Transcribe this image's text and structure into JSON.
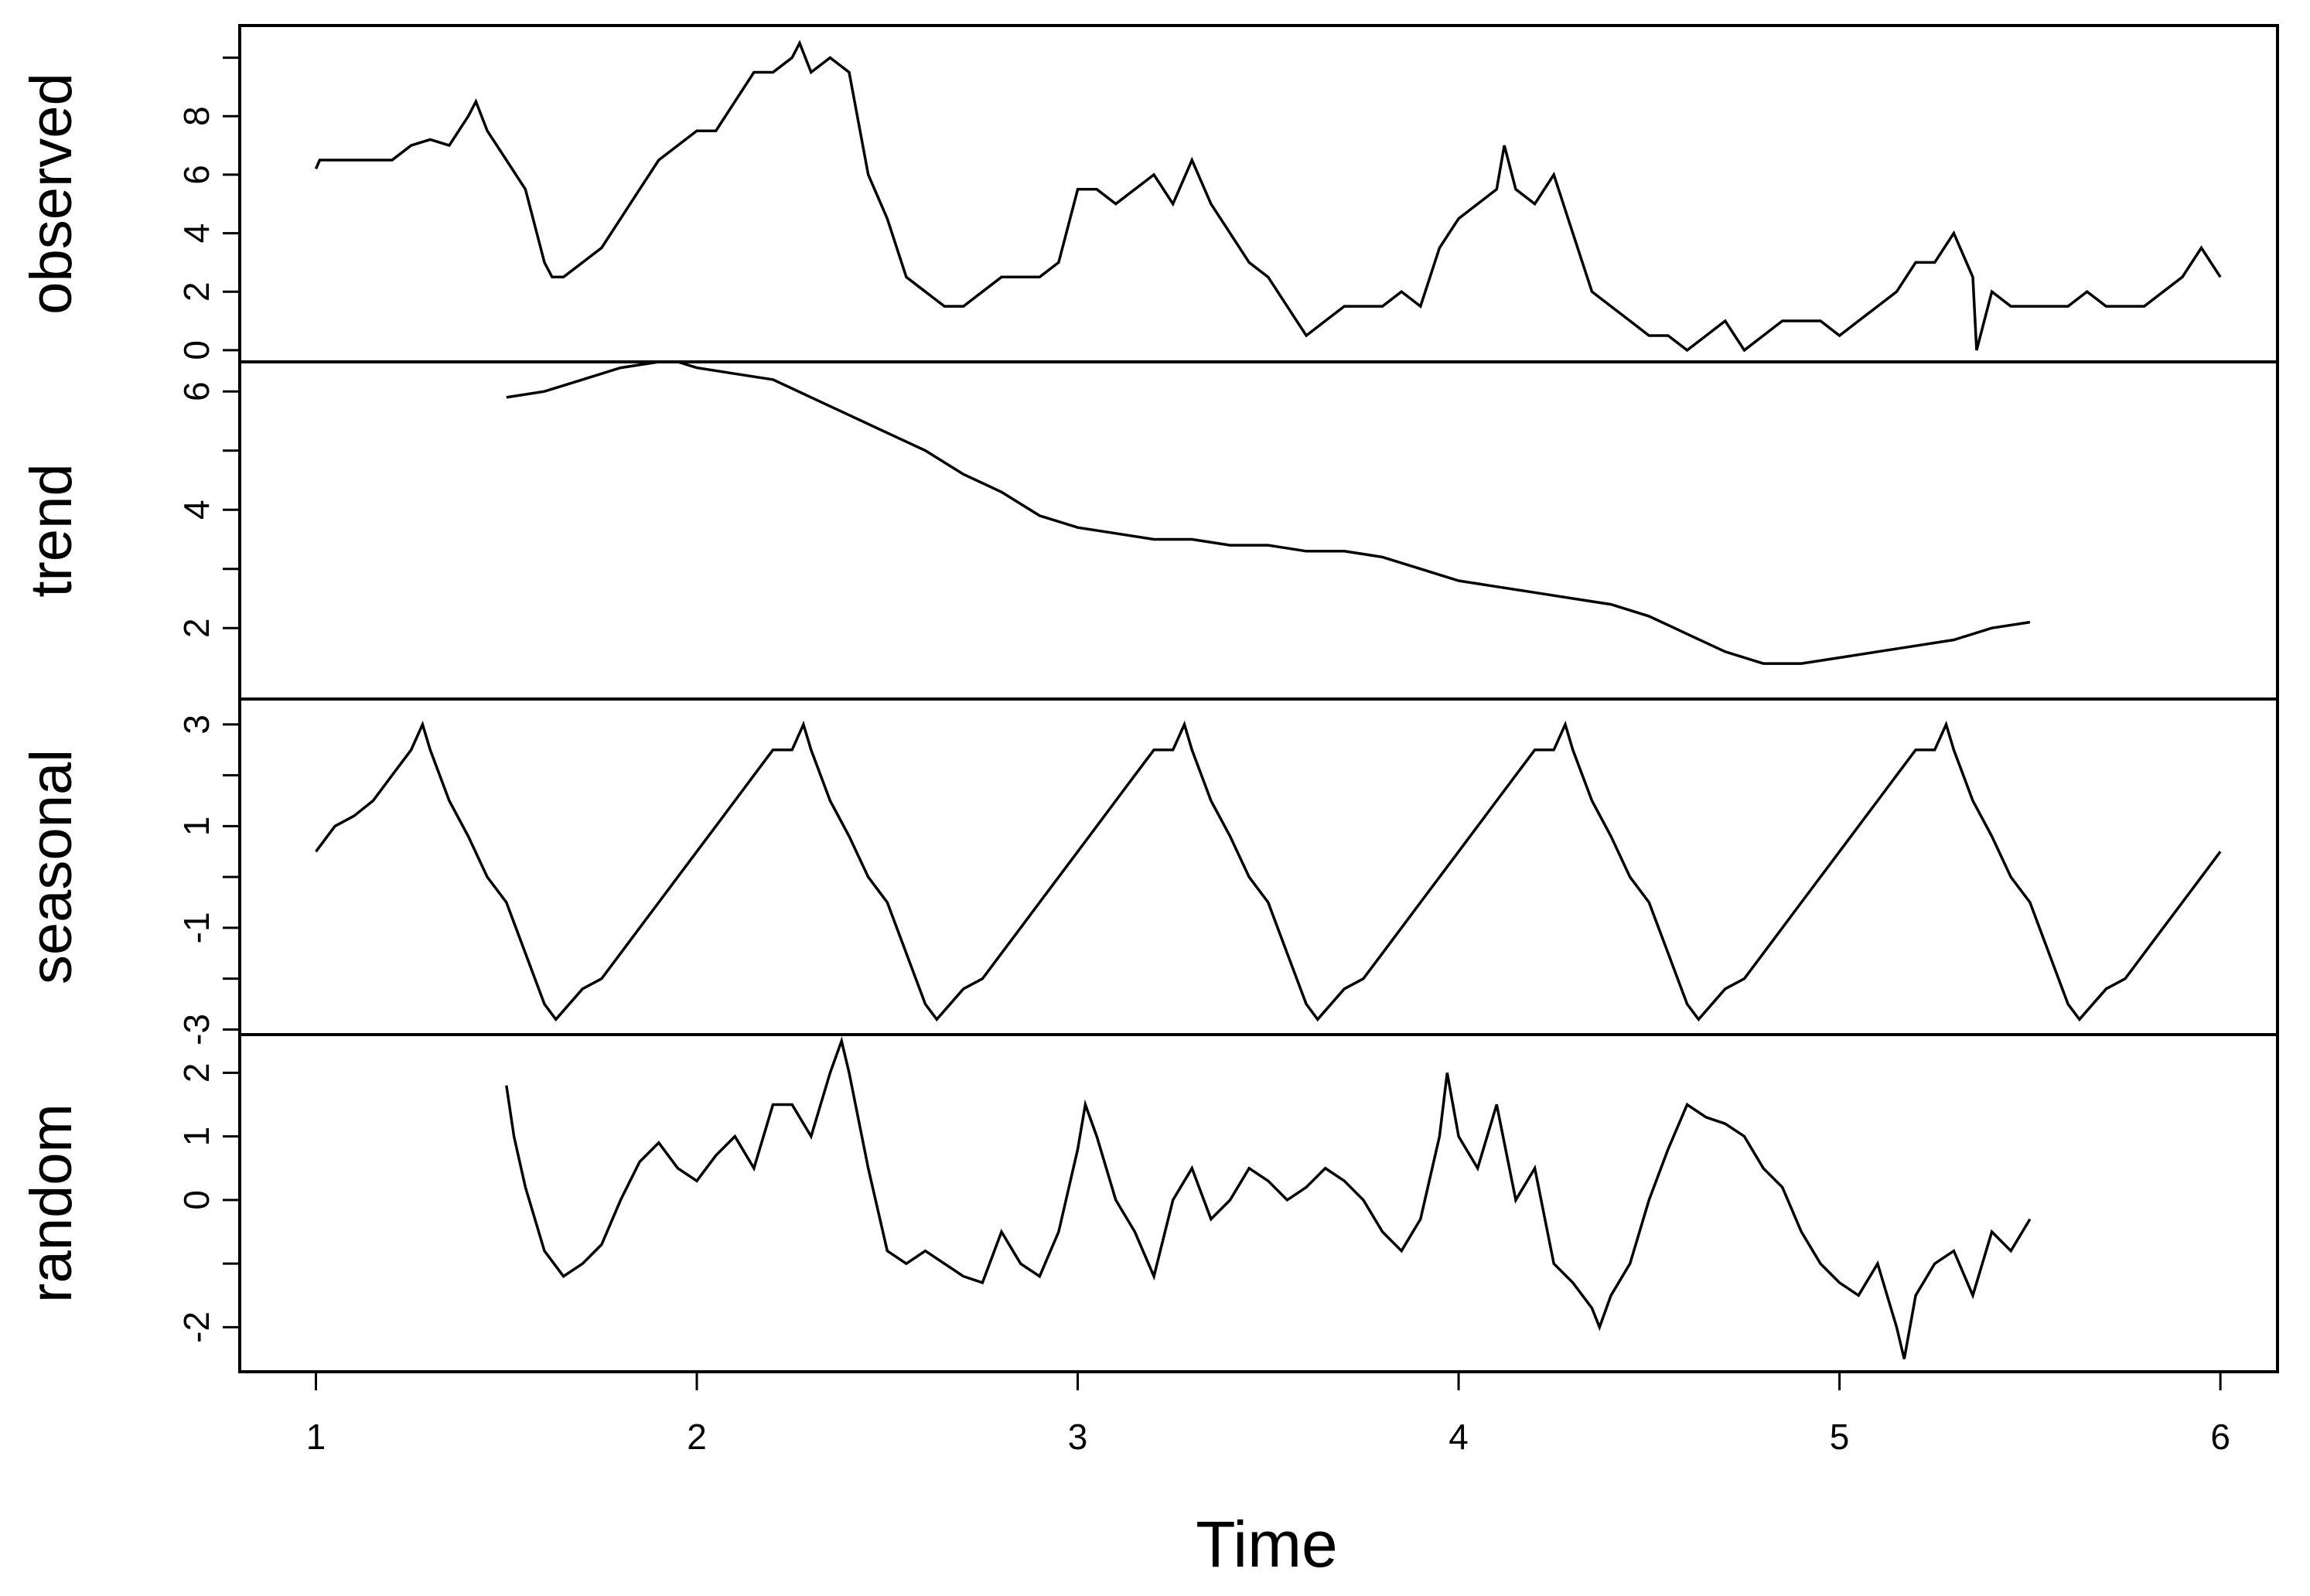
{
  "chart_data": {
    "type": "line",
    "title": "",
    "xlabel": "Time",
    "xlim": [
      0.8,
      6.15
    ],
    "x_ticks": [
      1,
      2,
      3,
      4,
      5,
      6
    ],
    "x_tick_labels": [
      "1",
      "2",
      "3",
      "4",
      "5",
      "6"
    ],
    "panels": [
      {
        "name": "observed",
        "ylabel": "observed",
        "ylim": [
          -0.4,
          11.1
        ],
        "y_ticks": [
          0,
          2,
          4,
          6,
          8,
          10
        ],
        "y_tick_labels": [
          "0",
          "2",
          "4",
          "6",
          "8",
          ""
        ],
        "x": [
          1.0,
          1.01,
          1.2,
          1.25,
          1.3,
          1.35,
          1.4,
          1.42,
          1.45,
          1.5,
          1.55,
          1.6,
          1.62,
          1.65,
          1.7,
          1.75,
          1.8,
          1.85,
          1.9,
          1.95,
          2.0,
          2.05,
          2.1,
          2.15,
          2.2,
          2.25,
          2.27,
          2.3,
          2.35,
          2.4,
          2.45,
          2.5,
          2.55,
          2.6,
          2.65,
          2.7,
          2.75,
          2.8,
          2.85,
          2.9,
          2.95,
          3.0,
          3.05,
          3.1,
          3.15,
          3.2,
          3.25,
          3.3,
          3.35,
          3.4,
          3.45,
          3.5,
          3.55,
          3.6,
          3.65,
          3.7,
          3.75,
          3.8,
          3.85,
          3.9,
          3.95,
          4.0,
          4.05,
          4.1,
          4.12,
          4.15,
          4.2,
          4.25,
          4.3,
          4.35,
          4.4,
          4.45,
          4.5,
          4.55,
          4.6,
          4.65,
          4.7,
          4.75,
          4.8,
          4.85,
          4.9,
          4.95,
          5.0,
          5.05,
          5.1,
          5.15,
          5.2,
          5.25,
          5.3,
          5.35,
          5.36,
          5.4,
          5.45,
          5.5,
          5.55,
          5.6,
          5.65,
          5.7,
          5.75,
          5.8,
          5.85,
          5.9,
          5.95,
          6.0
        ],
        "values": [
          6.2,
          6.5,
          6.5,
          7.0,
          7.2,
          7.0,
          8.0,
          8.5,
          7.5,
          6.5,
          5.5,
          3.0,
          2.5,
          2.5,
          3.0,
          3.5,
          4.5,
          5.5,
          6.5,
          7.0,
          7.5,
          7.5,
          8.5,
          9.5,
          9.5,
          10.0,
          10.5,
          9.5,
          10.0,
          9.5,
          6.0,
          4.5,
          2.5,
          2.0,
          1.5,
          1.5,
          2.0,
          2.5,
          2.5,
          2.5,
          3.0,
          5.5,
          5.5,
          5.0,
          5.5,
          6.0,
          5.0,
          6.5,
          5.0,
          4.0,
          3.0,
          2.5,
          1.5,
          0.5,
          1.0,
          1.5,
          1.5,
          1.5,
          2.0,
          1.5,
          3.5,
          4.5,
          5.0,
          5.5,
          7.0,
          5.5,
          5.0,
          6.0,
          4.0,
          2.0,
          1.5,
          1.0,
          0.5,
          0.5,
          0.0,
          0.5,
          1.0,
          0.0,
          0.5,
          1.0,
          1.0,
          1.0,
          0.5,
          1.0,
          1.5,
          2.0,
          3.0,
          3.0,
          4.0,
          2.5,
          0.0,
          2.0,
          1.5,
          1.5,
          1.5,
          1.5,
          2.0,
          1.5,
          1.5,
          1.5,
          2.0,
          2.5,
          3.5,
          2.5
        ]
      },
      {
        "name": "trend",
        "ylabel": "trend",
        "ylim": [
          0.8,
          6.5
        ],
        "y_ticks": [
          2,
          3,
          4,
          5,
          6
        ],
        "y_tick_labels": [
          "2",
          "",
          "4",
          "",
          "6"
        ],
        "x": [
          1.5,
          1.6,
          1.7,
          1.8,
          1.9,
          1.95,
          2.0,
          2.1,
          2.2,
          2.3,
          2.4,
          2.5,
          2.6,
          2.7,
          2.8,
          2.9,
          3.0,
          3.1,
          3.2,
          3.3,
          3.4,
          3.5,
          3.6,
          3.7,
          3.8,
          3.9,
          4.0,
          4.1,
          4.2,
          4.3,
          4.4,
          4.5,
          4.6,
          4.7,
          4.8,
          4.85,
          4.9,
          5.0,
          5.1,
          5.2,
          5.3,
          5.4,
          5.5
        ],
        "values": [
          5.9,
          6.0,
          6.2,
          6.4,
          6.5,
          6.5,
          6.4,
          6.3,
          6.2,
          5.9,
          5.6,
          5.3,
          5.0,
          4.6,
          4.3,
          3.9,
          3.7,
          3.6,
          3.5,
          3.5,
          3.4,
          3.4,
          3.3,
          3.3,
          3.2,
          3.0,
          2.8,
          2.7,
          2.6,
          2.5,
          2.4,
          2.2,
          1.9,
          1.6,
          1.4,
          1.4,
          1.4,
          1.5,
          1.6,
          1.7,
          1.8,
          2.0,
          2.1
        ]
      },
      {
        "name": "seasonal",
        "ylabel": "seasonal",
        "ylim": [
          -3.1,
          3.5
        ],
        "y_ticks": [
          3,
          2,
          1,
          0,
          -1,
          -2,
          -3
        ],
        "y_tick_labels": [
          "3",
          "",
          "1",
          "",
          "-1",
          "",
          "-3"
        ],
        "x": [
          1.0,
          1.05,
          1.1,
          1.15,
          1.2,
          1.25,
          1.28,
          1.3,
          1.35,
          1.4,
          1.45,
          1.5,
          1.55,
          1.6,
          1.63,
          1.7,
          1.75,
          1.8,
          1.85,
          1.9,
          2.0,
          2.05,
          2.1,
          2.15,
          2.2,
          2.25,
          2.28,
          2.3,
          2.35,
          2.4,
          2.45,
          2.5,
          2.55,
          2.6,
          2.63,
          2.7,
          2.75,
          2.8,
          2.85,
          2.9,
          3.0,
          3.05,
          3.1,
          3.15,
          3.2,
          3.25,
          3.28,
          3.3,
          3.35,
          3.4,
          3.45,
          3.5,
          3.55,
          3.6,
          3.63,
          3.7,
          3.75,
          3.8,
          3.85,
          3.9,
          4.0,
          4.05,
          4.1,
          4.15,
          4.2,
          4.25,
          4.28,
          4.3,
          4.35,
          4.4,
          4.45,
          4.5,
          4.55,
          4.6,
          4.63,
          4.7,
          4.75,
          4.8,
          4.85,
          4.9,
          5.0,
          5.05,
          5.1,
          5.15,
          5.2,
          5.25,
          5.28,
          5.3,
          5.35,
          5.4,
          5.45,
          5.5,
          5.55,
          5.6,
          5.63,
          5.7,
          5.75,
          5.8,
          5.85,
          5.9,
          5.95,
          6.0
        ],
        "values": [
          0.5,
          1.0,
          1.2,
          1.5,
          2.0,
          2.5,
          3.0,
          2.5,
          1.5,
          0.8,
          0.0,
          -0.5,
          -1.5,
          -2.5,
          -2.8,
          -2.2,
          -2.0,
          -1.5,
          -1.0,
          -0.5,
          0.5,
          1.0,
          1.5,
          2.0,
          2.5,
          2.5,
          3.0,
          2.5,
          1.5,
          0.8,
          0.0,
          -0.5,
          -1.5,
          -2.5,
          -2.8,
          -2.2,
          -2.0,
          -1.5,
          -1.0,
          -0.5,
          0.5,
          1.0,
          1.5,
          2.0,
          2.5,
          2.5,
          3.0,
          2.5,
          1.5,
          0.8,
          0.0,
          -0.5,
          -1.5,
          -2.5,
          -2.8,
          -2.2,
          -2.0,
          -1.5,
          -1.0,
          -0.5,
          0.5,
          1.0,
          1.5,
          2.0,
          2.5,
          2.5,
          3.0,
          2.5,
          1.5,
          0.8,
          0.0,
          -0.5,
          -1.5,
          -2.5,
          -2.8,
          -2.2,
          -2.0,
          -1.5,
          -1.0,
          -0.5,
          0.5,
          1.0,
          1.5,
          2.0,
          2.5,
          2.5,
          3.0,
          2.5,
          1.5,
          0.8,
          0.0,
          -0.5,
          -1.5,
          -2.5,
          -2.8,
          -2.2,
          -2.0,
          -1.5,
          -1.0,
          -0.5,
          0.0,
          0.5
        ]
      },
      {
        "name": "random",
        "ylabel": "random",
        "ylim": [
          -2.7,
          2.6
        ],
        "y_ticks": [
          -2,
          -1,
          0,
          1,
          2
        ],
        "y_tick_labels": [
          "-2",
          "",
          "0",
          "",
          "2"
        ],
        "extra_ytick_text": "1",
        "x": [
          1.5,
          1.52,
          1.55,
          1.6,
          1.65,
          1.7,
          1.75,
          1.8,
          1.85,
          1.9,
          1.95,
          2.0,
          2.05,
          2.1,
          2.15,
          2.2,
          2.25,
          2.3,
          2.35,
          2.38,
          2.4,
          2.45,
          2.5,
          2.55,
          2.6,
          2.65,
          2.7,
          2.75,
          2.8,
          2.85,
          2.9,
          2.95,
          3.0,
          3.02,
          3.05,
          3.1,
          3.15,
          3.2,
          3.25,
          3.3,
          3.35,
          3.4,
          3.45,
          3.5,
          3.55,
          3.6,
          3.65,
          3.7,
          3.75,
          3.8,
          3.85,
          3.9,
          3.95,
          3.97,
          4.0,
          4.05,
          4.1,
          4.15,
          4.2,
          4.25,
          4.3,
          4.35,
          4.37,
          4.4,
          4.45,
          4.5,
          4.55,
          4.6,
          4.65,
          4.7,
          4.75,
          4.8,
          4.85,
          4.9,
          4.95,
          5.0,
          5.05,
          5.1,
          5.15,
          5.17,
          5.2,
          5.25,
          5.3,
          5.35,
          5.4,
          5.45,
          5.5
        ],
        "values": [
          1.8,
          1.0,
          0.2,
          -0.8,
          -1.2,
          -1.0,
          -0.7,
          0.0,
          0.6,
          0.9,
          0.5,
          0.3,
          0.7,
          1.0,
          0.5,
          1.5,
          1.5,
          1.0,
          2.0,
          2.5,
          2.0,
          0.5,
          -0.8,
          -1.0,
          -0.8,
          -1.0,
          -1.2,
          -1.3,
          -0.5,
          -1.0,
          -1.2,
          -0.5,
          0.8,
          1.5,
          1.0,
          0.0,
          -0.5,
          -1.2,
          0.0,
          0.5,
          -0.3,
          0.0,
          0.5,
          0.3,
          0.0,
          0.2,
          0.5,
          0.3,
          0.0,
          -0.5,
          -0.8,
          -0.3,
          1.0,
          2.0,
          1.0,
          0.5,
          1.5,
          0.0,
          0.5,
          -1.0,
          -1.3,
          -1.7,
          -2.0,
          -1.5,
          -1.0,
          0.0,
          0.8,
          1.5,
          1.3,
          1.2,
          1.0,
          0.5,
          0.2,
          -0.5,
          -1.0,
          -1.3,
          -1.5,
          -1.0,
          -2.0,
          -2.5,
          -1.5,
          -1.0,
          -0.8,
          -1.5,
          -0.5,
          -0.8,
          -0.3
        ]
      }
    ]
  }
}
